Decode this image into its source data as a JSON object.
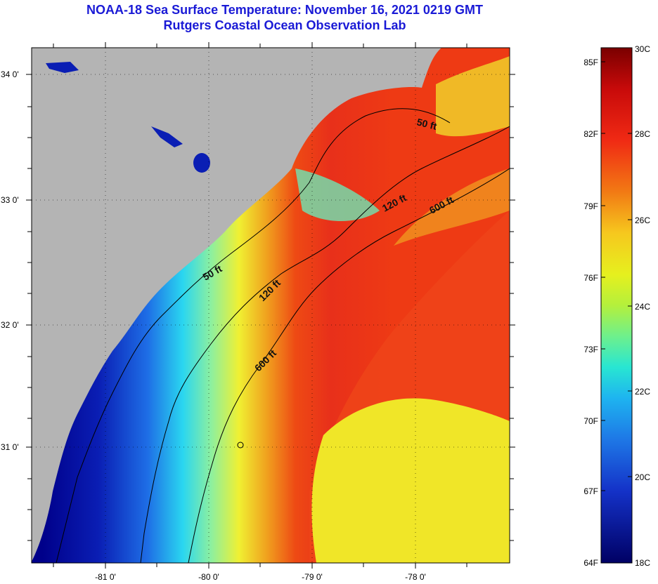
{
  "title": {
    "line1": "NOAA-18 Sea Surface Temperature:  November 16, 2021 0219 GMT",
    "line2": "Rutgers Coastal Ocean Observation Lab"
  },
  "axes": {
    "lon_ticks": [
      "-81 0'",
      "-80 0'",
      "-79 0'",
      "-78 0'"
    ],
    "lat_ticks": [
      "34 0'",
      "33 0'",
      "32 0'",
      "31 0'"
    ]
  },
  "contours": [
    {
      "label": "50 ft"
    },
    {
      "label": "120 ft"
    },
    {
      "label": "600 ft"
    },
    {
      "label": "50 ft"
    },
    {
      "label": "120 ft"
    },
    {
      "label": "600 ft"
    }
  ],
  "colorbar": {
    "fahrenheit": [
      "85F",
      "82F",
      "79F",
      "76F",
      "73F",
      "70F",
      "67F",
      "64F"
    ],
    "celsius": [
      "30C",
      "28C",
      "26C",
      "24C",
      "22C",
      "20C",
      "18C"
    ]
  },
  "colors": {
    "land": "#b4b4b4",
    "coast_blue": "#0a1eb4",
    "title": "#1a1ad6"
  }
}
